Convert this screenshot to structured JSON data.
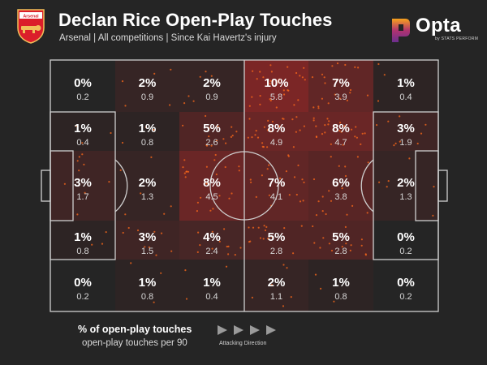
{
  "header": {
    "title": "Declan Rice Open-Play Touches",
    "subtitle": "Arsenal | All competitions | Since Kai Havertz's injury",
    "club_crest_text": "Arsenal",
    "brand_name": "Opta",
    "brand_sub": "by STATS PERFORM"
  },
  "legend": {
    "percent_label": "% of open-play touches",
    "per90_label": "open-play touches per 90",
    "direction_label": "Attacking Direction"
  },
  "colors": {
    "background": "#252525",
    "pitch_lines": "#cfcfcf",
    "zone_fill": "#b52828",
    "touch_dots": "#ff6a1a",
    "opta_gradient": [
      "#f7a21b",
      "#b1336f",
      "#6b2f8e"
    ]
  },
  "chart_data": {
    "type": "heatmap",
    "rows": 5,
    "cols": 6,
    "attacking_direction": "left-to-right",
    "pct": [
      [
        "0%",
        "2%",
        "2%",
        "10%",
        "7%",
        "1%"
      ],
      [
        "1%",
        "1%",
        "5%",
        "8%",
        "8%",
        "3%"
      ],
      [
        "3%",
        "2%",
        "8%",
        "7%",
        "6%",
        "2%"
      ],
      [
        "1%",
        "3%",
        "4%",
        "5%",
        "5%",
        "0%"
      ],
      [
        "0%",
        "1%",
        "1%",
        "2%",
        "1%",
        "0%"
      ]
    ],
    "pct_values": [
      [
        0,
        2,
        2,
        10,
        7,
        1
      ],
      [
        1,
        1,
        5,
        8,
        8,
        3
      ],
      [
        3,
        2,
        8,
        7,
        6,
        2
      ],
      [
        1,
        3,
        4,
        5,
        5,
        0
      ],
      [
        0,
        1,
        1,
        2,
        1,
        0
      ]
    ],
    "per90": [
      [
        "0.2",
        "0.9",
        "0.9",
        "5.8",
        "3.9",
        "0.4"
      ],
      [
        "0.4",
        "0.8",
        "2.6",
        "4.9",
        "4.7",
        "1.9"
      ],
      [
        "1.7",
        "1.3",
        "4.5",
        "4.1",
        "3.8",
        "1.3"
      ],
      [
        "0.8",
        "1.5",
        "2.4",
        "2.8",
        "2.8",
        "0.2"
      ],
      [
        "0.2",
        "0.8",
        "0.4",
        "1.1",
        "0.8",
        "0.2"
      ]
    ]
  }
}
